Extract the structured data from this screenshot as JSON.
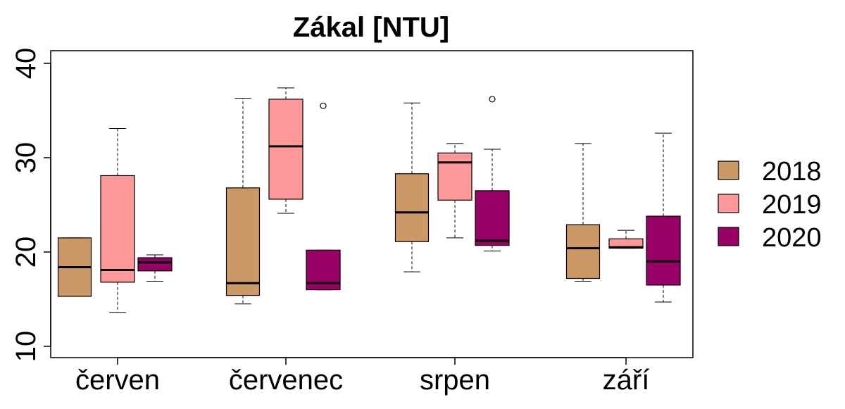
{
  "chart_data": {
    "type": "boxplot",
    "title": "Zákal [NTU]",
    "xlabel": "",
    "ylabel": "",
    "categories": [
      "červen",
      "červenec",
      "srpen",
      "září"
    ],
    "ylim": [
      10,
      40
    ],
    "y_ticks": [
      10,
      20,
      30,
      40
    ],
    "legend_position": "right",
    "series": [
      {
        "name": "2018",
        "color": "#cc9966",
        "boxes": [
          {
            "min": 15.3,
            "q1": 15.3,
            "median": 18.4,
            "q3": 21.5,
            "max": 21.5,
            "outliers": []
          },
          {
            "min": 14.5,
            "q1": 15.4,
            "median": 16.7,
            "q3": 26.8,
            "max": 36.3,
            "outliers": []
          },
          {
            "min": 17.9,
            "q1": 21.1,
            "median": 24.2,
            "q3": 28.3,
            "max": 35.8,
            "outliers": []
          },
          {
            "min": 16.9,
            "q1": 17.2,
            "median": 20.4,
            "q3": 22.9,
            "max": 31.5,
            "outliers": []
          }
        ]
      },
      {
        "name": "2019",
        "color": "#ff9999",
        "boxes": [
          {
            "min": 13.6,
            "q1": 16.8,
            "median": 18.1,
            "q3": 28.1,
            "max": 33.1,
            "outliers": []
          },
          {
            "min": 24.1,
            "q1": 25.6,
            "median": 31.2,
            "q3": 36.2,
            "max": 37.4,
            "outliers": []
          },
          {
            "min": 21.5,
            "q1": 25.5,
            "median": 29.5,
            "q3": 30.5,
            "max": 31.5,
            "outliers": []
          },
          {
            "min": 20.4,
            "q1": 20.4,
            "median": 20.5,
            "q3": 21.4,
            "max": 22.3,
            "outliers": []
          }
        ]
      },
      {
        "name": "2020",
        "color": "#990066",
        "boxes": [
          {
            "min": 16.9,
            "q1": 18.0,
            "median": 18.9,
            "q3": 19.4,
            "max": 19.7,
            "outliers": []
          },
          {
            "min": 16.0,
            "q1": 16.0,
            "median": 16.7,
            "q3": 20.2,
            "max": 20.2,
            "outliers": [
              35.5
            ]
          },
          {
            "min": 20.1,
            "q1": 20.7,
            "median": 21.2,
            "q3": 26.5,
            "max": 30.9,
            "outliers": [
              36.2
            ]
          },
          {
            "min": 14.7,
            "q1": 16.5,
            "median": 19.0,
            "q3": 23.8,
            "max": 32.6,
            "outliers": []
          }
        ]
      }
    ]
  }
}
